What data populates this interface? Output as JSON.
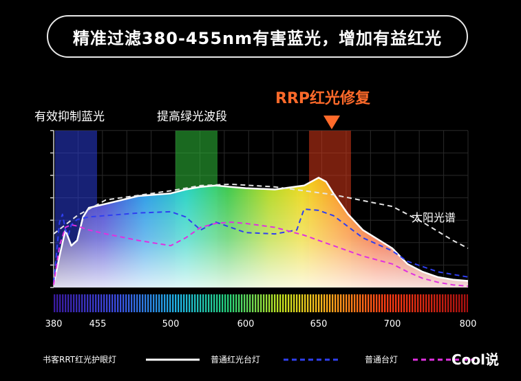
{
  "header": {
    "title": "精准过滤380-455nm有害蓝光，增加有益红光"
  },
  "annotations": {
    "blue_band": "有效抑制蓝光",
    "green_band": "提高绿光波段",
    "red_band": "RRP红光修复",
    "sun_label": "太阳光谱"
  },
  "watermark": "Cool说",
  "colors": {
    "band_blue": "#2a3dd6",
    "band_green": "#2fbf3a",
    "band_red": "#d9391a",
    "rrp_accent": "#ff6a2a",
    "series_rrt": "#ffffff",
    "series_red_lamp": "#2f3ff0",
    "series_common": "#e030e0",
    "sun_curve": "#e6e6e6"
  },
  "chart_data": {
    "type": "line",
    "xlabel": "",
    "ylabel": "",
    "xlim": [
      380,
      800
    ],
    "ylim": [
      0,
      6
    ],
    "x_ticks": [
      380,
      455,
      500,
      600,
      650,
      700,
      800
    ],
    "grid": true,
    "highlight_bands": [
      {
        "name": "有效抑制蓝光",
        "range": [
          380,
          410
        ]
      },
      {
        "name": "提高绿光波段",
        "range": [
          500,
          530
        ]
      },
      {
        "name": "RRP红光修复",
        "range": [
          645,
          675
        ]
      }
    ],
    "series": [
      {
        "name": "书客RRT红光护眼灯",
        "style": "solid",
        "x": [
          380,
          390,
          400,
          405,
          410,
          420,
          430,
          440,
          450,
          460,
          480,
          500,
          520,
          540,
          560,
          580,
          600,
          620,
          640,
          650,
          655,
          660,
          665,
          670,
          680,
          700,
          720,
          740,
          760,
          780,
          800
        ],
        "y": [
          0.1,
          1.2,
          2.2,
          1.9,
          1.6,
          1.8,
          2.7,
          3.05,
          3.1,
          3.2,
          3.5,
          3.6,
          3.75,
          3.85,
          3.9,
          3.85,
          3.8,
          3.75,
          3.9,
          4.2,
          4.05,
          3.6,
          3.2,
          2.8,
          2.2,
          1.5,
          0.9,
          0.6,
          0.4,
          0.3,
          0.25
        ]
      },
      {
        "name": "普通红光台灯",
        "style": "dashed",
        "x": [
          380,
          390,
          395,
          400,
          405,
          410,
          420,
          440,
          460,
          480,
          500,
          520,
          540,
          560,
          580,
          600,
          620,
          635,
          640,
          650,
          660,
          680,
          700,
          720,
          740,
          760,
          780,
          800
        ],
        "y": [
          0.2,
          2.5,
          2.8,
          2.2,
          2.0,
          2.4,
          2.6,
          2.7,
          2.75,
          2.85,
          2.9,
          2.7,
          2.2,
          2.5,
          2.3,
          2.1,
          2.05,
          2.2,
          3.0,
          2.95,
          2.75,
          1.9,
          1.4,
          1.0,
          0.8,
          0.6,
          0.5,
          0.4
        ]
      },
      {
        "name": "普通台灯",
        "style": "dashed",
        "x": [
          380,
          390,
          400,
          410,
          420,
          440,
          460,
          480,
          500,
          520,
          540,
          560,
          580,
          600,
          620,
          640,
          660,
          680,
          700,
          720,
          740,
          760,
          780,
          800
        ],
        "y": [
          0.1,
          1.6,
          2.3,
          2.4,
          2.35,
          2.2,
          2.05,
          1.8,
          1.6,
          1.9,
          2.3,
          2.45,
          2.5,
          2.45,
          2.3,
          2.0,
          1.6,
          1.2,
          0.9,
          0.6,
          0.35,
          0.2,
          0.1,
          0.05
        ]
      },
      {
        "name": "太阳光谱",
        "style": "dashed",
        "x": [
          380,
          420,
          460,
          500,
          540,
          580,
          620,
          660,
          700,
          740,
          780,
          800
        ],
        "y": [
          2.05,
          2.75,
          3.35,
          3.7,
          3.9,
          3.95,
          3.85,
          3.55,
          3.1,
          2.5,
          1.8,
          1.5
        ]
      }
    ]
  }
}
